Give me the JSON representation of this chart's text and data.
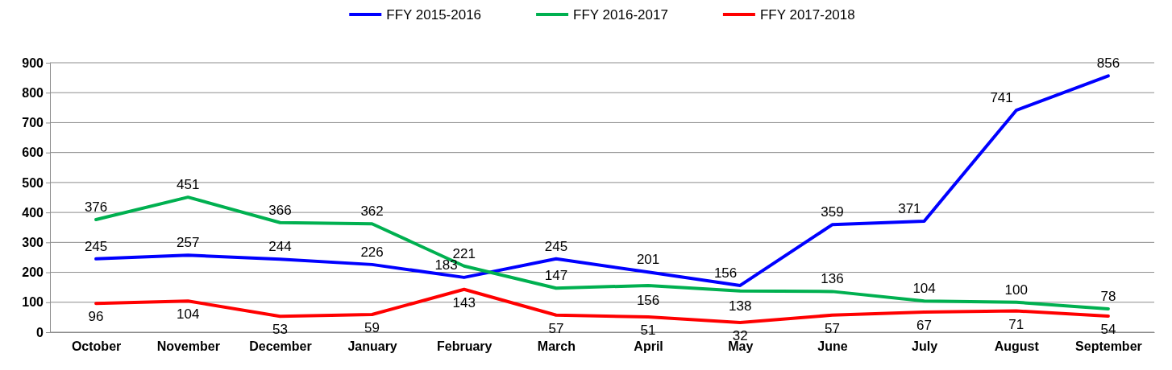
{
  "chart_data": {
    "type": "line",
    "categories": [
      "October",
      "November",
      "December",
      "January",
      "February",
      "March",
      "April",
      "May",
      "June",
      "July",
      "August",
      "September"
    ],
    "series": [
      {
        "name": "FFY 2015-2016",
        "color": "#0000ff",
        "values": [
          245,
          257,
          244,
          226,
          183,
          245,
          201,
          156,
          359,
          371,
          741,
          856
        ]
      },
      {
        "name": "FFY 2016-2017",
        "color": "#00b050",
        "values": [
          376,
          451,
          366,
          362,
          221,
          147,
          156,
          138,
          136,
          104,
          100,
          78
        ]
      },
      {
        "name": "FFY 2017-2018",
        "color": "#ff0000",
        "values": [
          96,
          104,
          53,
          59,
          143,
          57,
          51,
          32,
          57,
          67,
          71,
          54
        ]
      }
    ],
    "ylim": [
      0,
      900
    ],
    "yticks": [
      0,
      100,
      200,
      300,
      400,
      500,
      600,
      700,
      800,
      900
    ],
    "grid": "y",
    "legend": "top",
    "data_labels": true,
    "marker": "none",
    "line_style": "solid"
  }
}
